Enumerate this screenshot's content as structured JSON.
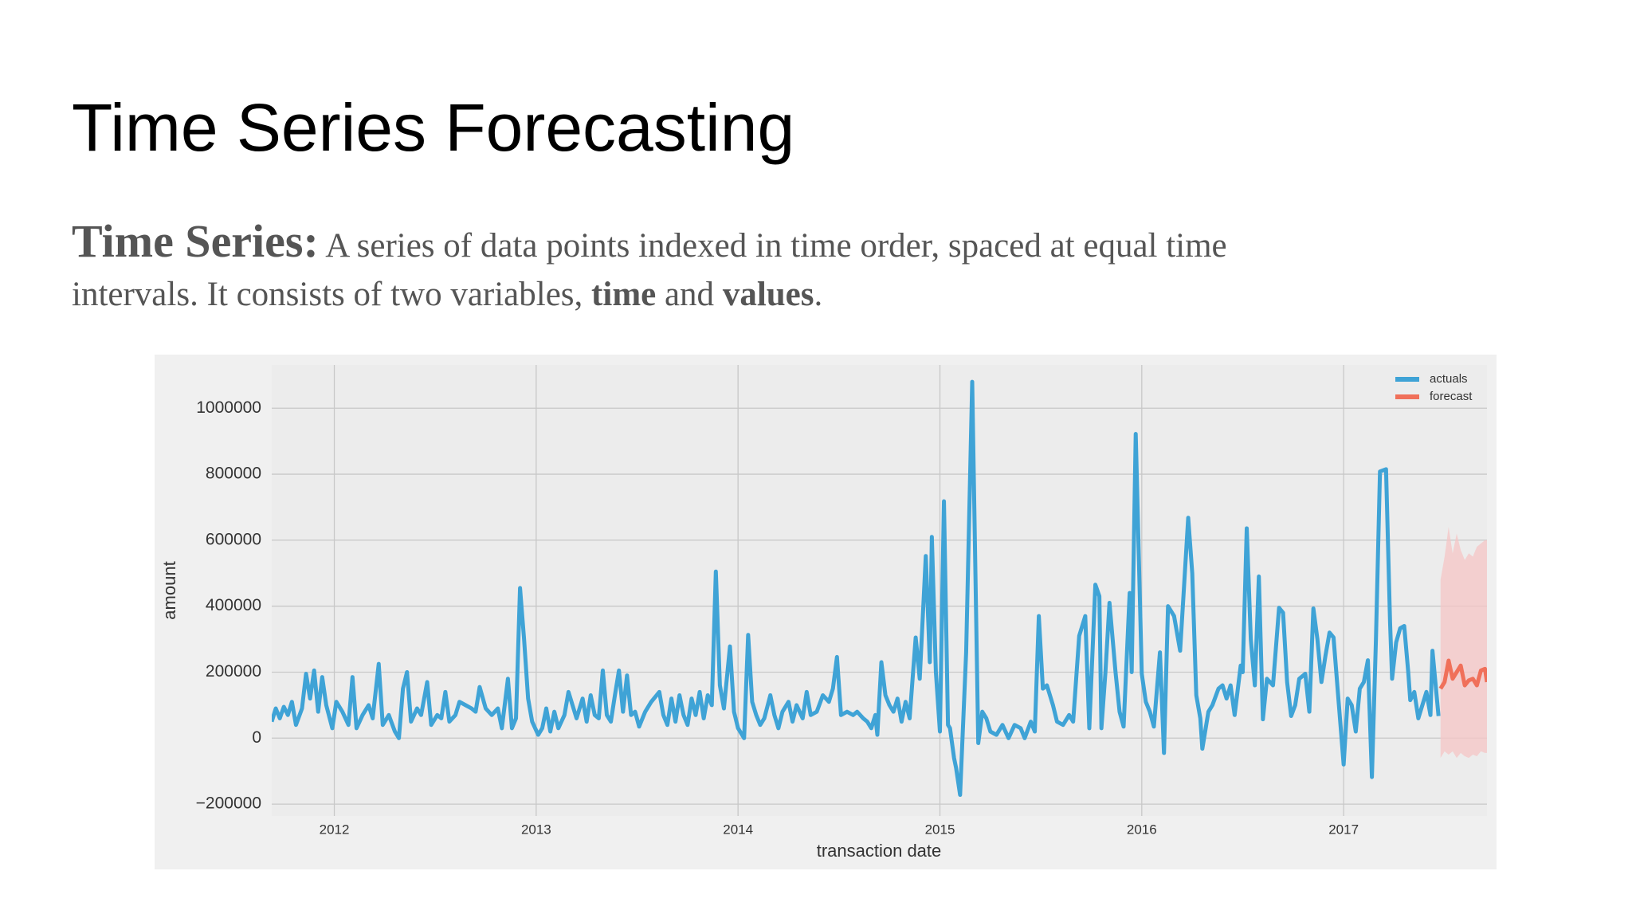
{
  "title": "Time Series Forecasting",
  "paragraph": [
    "Time Series:",
    "A series of data points indexed in time order, spaced at equal time",
    "intervals. It consists of two variables,",
    "time",
    "and",
    "values",
    "."
  ],
  "chart_data": {
    "type": "line",
    "xlabel": "transaction date",
    "ylabel": "amount",
    "xlim": [
      2011.69,
      2017.71
    ],
    "xticks": [
      2012,
      2013,
      2014,
      2015,
      2016,
      2017
    ],
    "ylim": [
      -236000,
      1131000
    ],
    "yticks": [
      {
        "value": -200000,
        "label": "−200000"
      },
      0,
      200000,
      400000,
      600000,
      800000,
      1000000
    ],
    "grid": true,
    "legend": "upper right",
    "series": [
      {
        "name": "actuals",
        "color": "#3fa3d6",
        "x": [
          2011.69,
          2011.71,
          2011.73,
          2011.75,
          2011.77,
          2011.79,
          2011.81,
          2011.84,
          2011.86,
          2011.88,
          2011.9,
          2011.92,
          2011.94,
          2011.96,
          2011.99,
          2012.01,
          2012.04,
          2012.07,
          2012.09,
          2012.11,
          2012.14,
          2012.17,
          2012.19,
          2012.22,
          2012.24,
          2012.27,
          2012.3,
          2012.32,
          2012.34,
          2012.36,
          2012.38,
          2012.41,
          2012.43,
          2012.46,
          2012.48,
          2012.51,
          2012.53,
          2012.55,
          2012.57,
          2012.6,
          2012.62,
          2012.65,
          2012.68,
          2012.7,
          2012.72,
          2012.75,
          2012.78,
          2012.81,
          2012.83,
          2012.86,
          2012.88,
          2012.9,
          2012.92,
          2012.94,
          2012.96,
          2012.98,
          2013.01,
          2013.03,
          2013.05,
          2013.07,
          2013.09,
          2013.11,
          2013.14,
          2013.16,
          2013.18,
          2013.2,
          2013.23,
          2013.25,
          2013.27,
          2013.29,
          2013.31,
          2013.33,
          2013.35,
          2013.37,
          2013.39,
          2013.41,
          2013.43,
          2013.45,
          2013.47,
          2013.49,
          2013.51,
          2013.54,
          2013.57,
          2013.61,
          2013.63,
          2013.65,
          2013.67,
          2013.69,
          2013.71,
          2013.73,
          2013.75,
          2013.77,
          2013.79,
          2013.81,
          2013.83,
          2013.85,
          2013.87,
          2013.89,
          2013.91,
          2013.93,
          2013.96,
          2013.98,
          2014.0,
          2014.03,
          2014.05,
          2014.07,
          2014.09,
          2014.11,
          2014.13,
          2014.16,
          2014.18,
          2014.2,
          2014.22,
          2014.25,
          2014.27,
          2014.29,
          2014.32,
          2014.34,
          2014.36,
          2014.39,
          2014.42,
          2014.45,
          2014.47,
          2014.49,
          2014.51,
          2014.54,
          2014.57,
          2014.59,
          2014.62,
          2014.64,
          2014.66,
          2014.68,
          2014.69,
          2014.71,
          2014.73,
          2014.75,
          2014.77,
          2014.79,
          2014.81,
          2014.83,
          2014.85,
          2014.88,
          2014.9,
          2014.93,
          2014.95,
          2014.96,
          2014.98,
          2015.0,
          2015.02,
          2015.04,
          2015.05,
          2015.07,
          2015.08,
          2015.1,
          2015.13,
          2015.16,
          2015.19,
          2015.21,
          2015.23,
          2015.25,
          2015.28,
          2015.31,
          2015.34,
          2015.37,
          2015.4,
          2015.42,
          2015.45,
          2015.47,
          2015.49,
          2015.51,
          2015.53,
          2015.56,
          2015.58,
          2015.61,
          2015.64,
          2015.66,
          2015.69,
          2015.72,
          2015.74,
          2015.77,
          2015.79,
          2015.8,
          2015.82,
          2015.84,
          2015.87,
          2015.89,
          2015.91,
          2015.94,
          2015.95,
          2015.97,
          2016.0,
          2016.02,
          2016.04,
          2016.06,
          2016.09,
          2016.11,
          2016.13,
          2016.16,
          2016.19,
          2016.23,
          2016.25,
          2016.27,
          2016.29,
          2016.3,
          2016.33,
          2016.35,
          2016.38,
          2016.4,
          2016.42,
          2016.44,
          2016.46,
          2016.49,
          2016.5,
          2016.52,
          2016.54,
          2016.56,
          2016.58,
          2016.6,
          2016.62,
          2016.65,
          2016.68,
          2016.7,
          2016.72,
          2016.74,
          2016.76,
          2016.78,
          2016.81,
          2016.83,
          2016.85,
          2016.87,
          2016.89,
          2016.91,
          2016.93,
          2016.95,
          2016.97,
          2017.0,
          2017.02,
          2017.04,
          2017.06,
          2017.08,
          2017.1,
          2017.12,
          2017.14,
          2017.16,
          2017.18,
          2017.21,
          2017.23,
          2017.24,
          2017.26,
          2017.28,
          2017.3,
          2017.32,
          2017.33,
          2017.35,
          2017.37,
          2017.39,
          2017.41,
          2017.43,
          2017.44,
          2017.47
        ],
        "values": [
          50000,
          90000,
          60000,
          95000,
          70000,
          110000,
          40000,
          90000,
          195000,
          120000,
          205000,
          80000,
          185000,
          100000,
          30000,
          110000,
          80000,
          40000,
          185000,
          30000,
          70000,
          100000,
          60000,
          225000,
          40000,
          70000,
          20000,
          0,
          150000,
          200000,
          50000,
          90000,
          70000,
          170000,
          40000,
          70000,
          60000,
          140000,
          50000,
          70000,
          110000,
          100000,
          90000,
          80000,
          155000,
          90000,
          70000,
          90000,
          30000,
          180000,
          30000,
          60000,
          455000,
          300000,
          120000,
          50000,
          10000,
          30000,
          90000,
          20000,
          80000,
          30000,
          70000,
          140000,
          100000,
          60000,
          120000,
          50000,
          130000,
          70000,
          60000,
          205000,
          70000,
          50000,
          130000,
          205000,
          80000,
          190000,
          70000,
          80000,
          35000,
          80000,
          110000,
          140000,
          70000,
          40000,
          120000,
          50000,
          130000,
          70000,
          40000,
          120000,
          70000,
          140000,
          60000,
          130000,
          100000,
          505000,
          160000,
          90000,
          278000,
          80000,
          30000,
          0,
          313000,
          110000,
          70000,
          40000,
          60000,
          130000,
          70000,
          30000,
          80000,
          110000,
          50000,
          100000,
          60000,
          140000,
          70000,
          80000,
          130000,
          110000,
          150000,
          246000,
          70000,
          80000,
          70000,
          80000,
          60000,
          50000,
          30000,
          70000,
          10000,
          230000,
          130000,
          100000,
          80000,
          120000,
          50000,
          110000,
          60000,
          305000,
          180000,
          552000,
          230000,
          610000,
          200000,
          20000,
          718000,
          40000,
          30000,
          -60000,
          -90000,
          -172000,
          260000,
          1080000,
          -15000,
          80000,
          60000,
          20000,
          10000,
          40000,
          0,
          40000,
          30000,
          0,
          50000,
          20000,
          370000,
          150000,
          160000,
          100000,
          50000,
          40000,
          70000,
          50000,
          310000,
          370000,
          30000,
          465000,
          430000,
          30000,
          200000,
          410000,
          200000,
          80000,
          35000,
          440000,
          200000,
          922000,
          195000,
          110000,
          80000,
          35000,
          260000,
          -45000,
          400000,
          370000,
          265000,
          668000,
          500000,
          130000,
          60000,
          -32000,
          80000,
          100000,
          150000,
          160000,
          120000,
          160000,
          70000,
          220000,
          200000,
          636000,
          300000,
          160000,
          490000,
          57000,
          180000,
          160000,
          395000,
          380000,
          170000,
          67000,
          100000,
          180000,
          195000,
          80000,
          393000,
          300000,
          170000,
          250000,
          320000,
          305000,
          150000,
          -80000,
          120000,
          100000,
          20000,
          150000,
          170000,
          236000,
          -118000,
          300000,
          808000,
          815000,
          350000,
          180000,
          290000,
          333000,
          340000,
          200000,
          115000,
          140000,
          60000,
          100000,
          140000,
          70000,
          265000,
          67000
        ]
      },
      {
        "name": "forecast",
        "color": "#f0705a",
        "band_color": "#f5c6c6",
        "x": [
          2017.48,
          2017.5,
          2017.52,
          2017.54,
          2017.56,
          2017.58,
          2017.6,
          2017.62,
          2017.64,
          2017.66,
          2017.68,
          2017.7,
          2017.71
        ],
        "values": [
          150000,
          170000,
          235000,
          180000,
          200000,
          220000,
          160000,
          175000,
          180000,
          160000,
          205000,
          210000,
          170000
        ],
        "upper": [
          480000,
          550000,
          640000,
          560000,
          620000,
          570000,
          540000,
          560000,
          550000,
          580000,
          590000,
          600000,
          600000
        ],
        "lower": [
          -60000,
          -40000,
          -50000,
          -40000,
          -60000,
          -45000,
          -55000,
          -60000,
          -50000,
          -55000,
          -40000,
          -45000,
          -45000
        ]
      }
    ]
  }
}
